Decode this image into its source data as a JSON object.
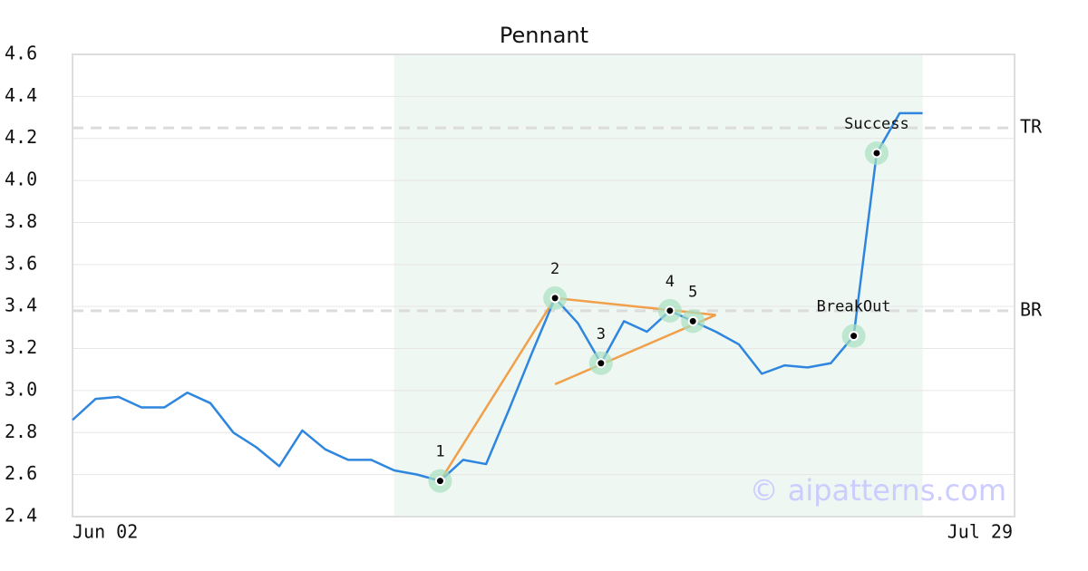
{
  "chart_data": {
    "type": "line",
    "title": "Pennant",
    "categories": [
      "Jun 02",
      null,
      null,
      null,
      null,
      null,
      null,
      null,
      null,
      null,
      null,
      null,
      null,
      null,
      null,
      null,
      null,
      null,
      null,
      null,
      null,
      null,
      null,
      null,
      null,
      null,
      null,
      null,
      null,
      null,
      null,
      null,
      null,
      null,
      null,
      null,
      null,
      null,
      null,
      null,
      null,
      "Jul 29"
    ],
    "series": [
      {
        "color": "#2e86de",
        "values": [
          2.86,
          2.96,
          2.97,
          2.92,
          2.92,
          2.99,
          2.94,
          2.8,
          2.73,
          2.64,
          2.81,
          2.72,
          2.67,
          2.67,
          2.62,
          2.6,
          2.57,
          2.67,
          2.65,
          2.91,
          3.18,
          3.44,
          3.32,
          3.13,
          3.33,
          3.28,
          3.38,
          3.33,
          3.28,
          3.22,
          3.08,
          3.12,
          3.11,
          3.13,
          3.26,
          4.13,
          4.32,
          4.32,
          null,
          null,
          null,
          null
        ]
      }
    ],
    "ylim": [
      2.4,
      4.6
    ],
    "yticks": [
      2.4,
      2.6,
      2.8,
      {
        "value": 3.0,
        "label": "3.0"
      },
      3.2,
      3.4,
      3.6,
      3.8,
      {
        "value": 4.0,
        "label": "4.0"
      },
      4.2,
      4.4,
      4.6
    ],
    "grid": true,
    "highlight_range": [
      14,
      37
    ],
    "reference_lines": [
      {
        "label": "TR",
        "value": 4.25
      },
      {
        "label": "BR",
        "value": 3.38
      }
    ],
    "trend_color": "#f0a04b",
    "trend_lines": [
      {
        "x": [
          16,
          21
        ],
        "y": [
          2.57,
          3.44
        ]
      },
      {
        "x": [
          21,
          28
        ],
        "y": [
          3.44,
          3.36
        ]
      },
      {
        "x": [
          21,
          28
        ],
        "y": [
          3.03,
          3.36
        ]
      }
    ],
    "annotations": [
      {
        "label": "1",
        "index": 16
      },
      {
        "label": "2",
        "index": 21
      },
      {
        "label": "3",
        "index": 23
      },
      {
        "label": "4",
        "index": 26
      },
      {
        "label": "5",
        "index": 27
      },
      {
        "label": "BreakOut",
        "index": 34
      },
      {
        "label": "Success",
        "index": 35
      }
    ],
    "watermark": "© aipatterns.com"
  }
}
